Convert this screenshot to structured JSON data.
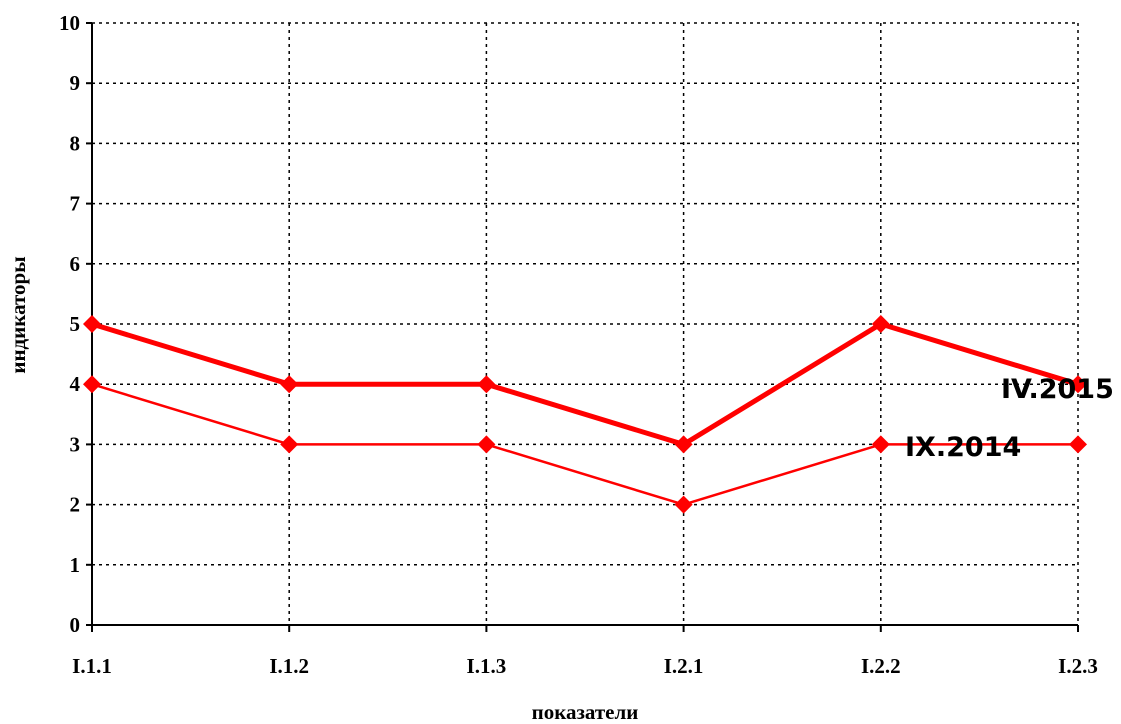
{
  "chart_data": {
    "type": "line",
    "categories": [
      "I.1.1",
      "I.1.2",
      "I.1.3",
      "I.2.1",
      "I.2.2",
      "I.2.3"
    ],
    "series": [
      {
        "name": "IV.2015",
        "values": [
          5,
          4,
          4,
          3,
          5,
          4
        ],
        "color": "#ff0000",
        "emphasis": "thick"
      },
      {
        "name": "IX.2014",
        "values": [
          4,
          3,
          3,
          2,
          3,
          3
        ],
        "color": "#ff0000",
        "emphasis": "thin"
      }
    ],
    "title": "",
    "xlabel": "показатели",
    "ylabel": "индикаторы",
    "ylim": [
      0,
      10
    ],
    "yticks": [
      0,
      1,
      2,
      3,
      4,
      5,
      6,
      7,
      8,
      9,
      10
    ],
    "grid": true,
    "marker": "diamond"
  }
}
